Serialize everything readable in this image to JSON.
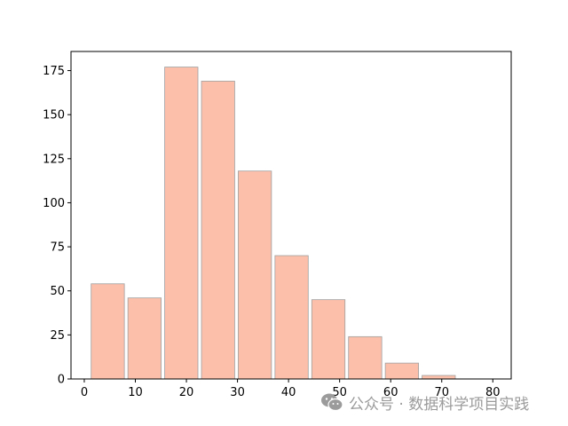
{
  "chart_data": {
    "type": "bar",
    "x_bins": [
      [
        1,
        8.2
      ],
      [
        8.2,
        15.4
      ],
      [
        15.4,
        22.6
      ],
      [
        22.6,
        29.8
      ],
      [
        29.8,
        37
      ],
      [
        37,
        44.2
      ],
      [
        44.2,
        51.4
      ],
      [
        51.4,
        58.6
      ],
      [
        58.6,
        65.8
      ],
      [
        65.8,
        73
      ]
    ],
    "values": [
      54,
      46,
      177,
      169,
      118,
      70,
      45,
      24,
      9,
      2
    ],
    "xticks": [
      "0",
      "10",
      "20",
      "30",
      "40",
      "50",
      "60",
      "70",
      "80"
    ],
    "yticks": [
      "0",
      "25",
      "50",
      "75",
      "100",
      "125",
      "150",
      "175"
    ],
    "xlim": [
      -2.6,
      83.6
    ],
    "ylim": [
      0,
      185.85
    ],
    "bar_color": "#fcbfaa",
    "bar_edge_color": "#a0a0a0",
    "grid": false,
    "legend": "none"
  },
  "watermark": {
    "text": "公众号 · 数据科学项目实践",
    "icon": "wechat-icon"
  }
}
